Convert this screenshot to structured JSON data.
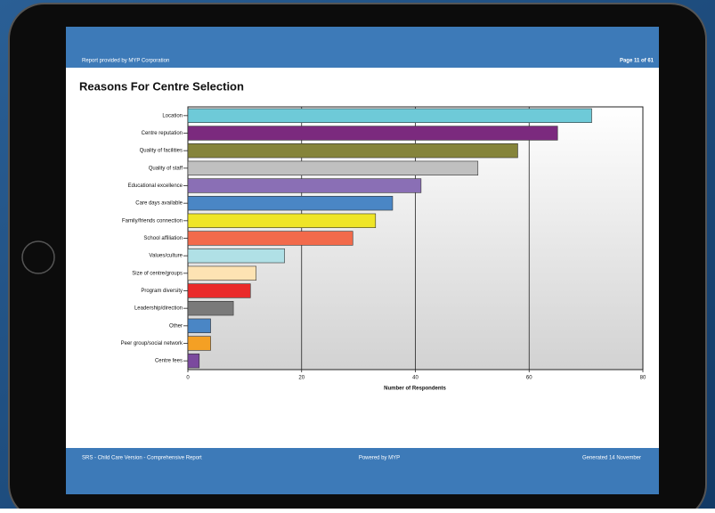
{
  "header": {
    "left": "Report provided by MYP Corporation",
    "right": "Page 11 of 61"
  },
  "footer": {
    "left": "SRS - Child Care Version - Comprehensive Report",
    "center": "Powered by MYP",
    "right": "Generated 14 November"
  },
  "chart_data": {
    "type": "bar",
    "title": "Reasons For Centre Selection",
    "categories": [
      "Location",
      "Centre reputation",
      "Quality of facilities",
      "Quality of staff",
      "Educational excellence",
      "Care days available",
      "Family/friends connection",
      "School affiliation",
      "Values/culture",
      "Size of centre/groups",
      "Program diversity",
      "Leadership/direction",
      "Other",
      "Peer group/social network",
      "Centre fees"
    ],
    "values": [
      71,
      65,
      58,
      51,
      41,
      36,
      33,
      29,
      17,
      12,
      11,
      8,
      4,
      4,
      2
    ],
    "colors": [
      "#6ecad8",
      "#7b2a7e",
      "#85843a",
      "#c0c0c0",
      "#8a6fb5",
      "#4a86c5",
      "#efe527",
      "#f26a4b",
      "#b0e0e6",
      "#fde3b3",
      "#ea2a2a",
      "#7a7a7a",
      "#4a86c5",
      "#f4a024",
      "#7b4a9e"
    ],
    "x_label": "Number of Respondents",
    "xlim": [
      0,
      80
    ],
    "xticks": [
      0,
      20,
      40,
      60,
      80
    ],
    "grid": true
  }
}
